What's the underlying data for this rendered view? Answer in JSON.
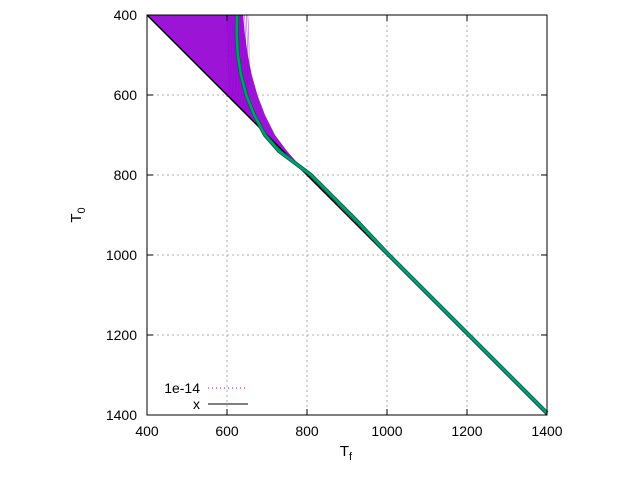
{
  "chart_data": {
    "type": "line",
    "xlabel": "T",
    "xlabel_subscript": "f",
    "ylabel": "T",
    "ylabel_subscript": "0",
    "xlim": [
      400,
      1400
    ],
    "ylim": [
      400,
      1400
    ],
    "y_inverted": true,
    "xticks": [
      400,
      600,
      800,
      1000,
      1200,
      1400
    ],
    "yticks": [
      400,
      600,
      800,
      1000,
      1200,
      1400
    ],
    "grid": true,
    "legend_position": "bottom-left",
    "series": [
      {
        "name": "1e-14",
        "color": "#9400d3",
        "style": "dense family of curves filling region between T_f = T_0 and boundary",
        "boundary_x": [
          400,
          640,
          645,
          652,
          662,
          676,
          695,
          720,
          750,
          785,
          822,
          860,
          880
        ],
        "boundary_y": [
          400,
          400,
          450,
          500,
          550,
          600,
          650,
          700,
          740,
          780,
          815,
          850,
          880
        ]
      },
      {
        "name": "x",
        "color": "#000000",
        "style": "line",
        "x": [
          400,
          1400
        ],
        "y": [
          400,
          1400
        ]
      },
      {
        "name": "",
        "color": "#009e73",
        "style": "thick line",
        "x": [
          625,
          624,
          627,
          635,
          648,
          668,
          695,
          730,
          770,
          810,
          860,
          920,
          1000,
          1100,
          1200,
          1300,
          1400
        ],
        "y": [
          400,
          450,
          500,
          550,
          600,
          650,
          700,
          740,
          770,
          800,
          850,
          910,
          995,
          1095,
          1195,
          1295,
          1395
        ]
      }
    ]
  }
}
